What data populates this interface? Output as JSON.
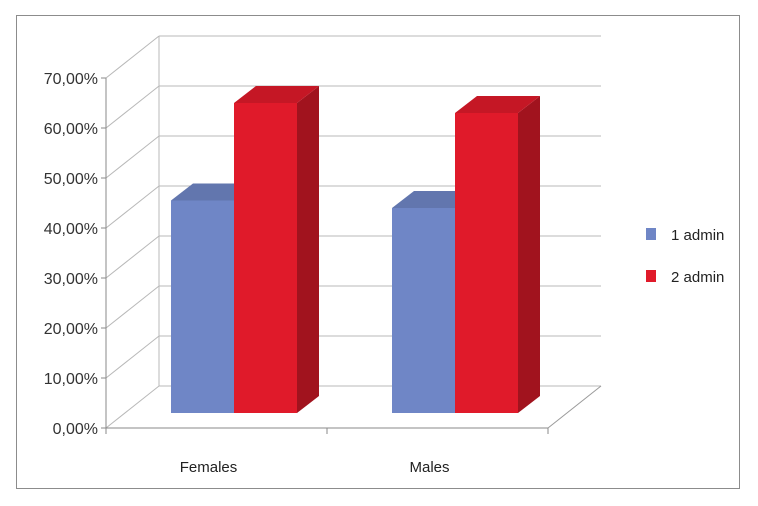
{
  "chart_data": {
    "type": "bar",
    "categories": [
      "Females",
      "Males"
    ],
    "series": [
      {
        "name": "1 admin",
        "values": [
          0.425,
          0.41
        ],
        "color": "#6f86c6"
      },
      {
        "name": "2 admin",
        "values": [
          0.62,
          0.6
        ],
        "color": "#e01a2a"
      }
    ],
    "y_ticks": [
      "0,00%",
      "10,00%",
      "20,00%",
      "30,00%",
      "40,00%",
      "50,00%",
      "60,00%",
      "70,00%"
    ],
    "ylim": [
      0,
      0.7
    ],
    "title": "",
    "xlabel": "",
    "ylabel": "",
    "grid": true,
    "legend_position": "right",
    "style": "3d-clustered-column"
  }
}
